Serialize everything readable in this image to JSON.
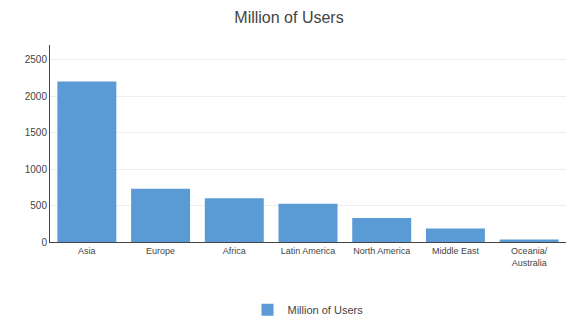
{
  "chart_data": {
    "type": "bar",
    "title": "Million of Users",
    "categories": [
      "Asia",
      "Europe",
      "Africa",
      "Latin America",
      "North America",
      "Middle East",
      "Oceania/\nAustralia"
    ],
    "series": [
      {
        "name": "Million of Users",
        "color": "#5B9BD5",
        "values": [
          2200,
          730,
          600,
          525,
          330,
          185,
          35
        ]
      }
    ],
    "ylim": [
      0,
      2700
    ],
    "yticks": [
      0,
      500,
      1000,
      1500,
      2000,
      2500
    ],
    "grid": true,
    "legend": "bottom"
  }
}
